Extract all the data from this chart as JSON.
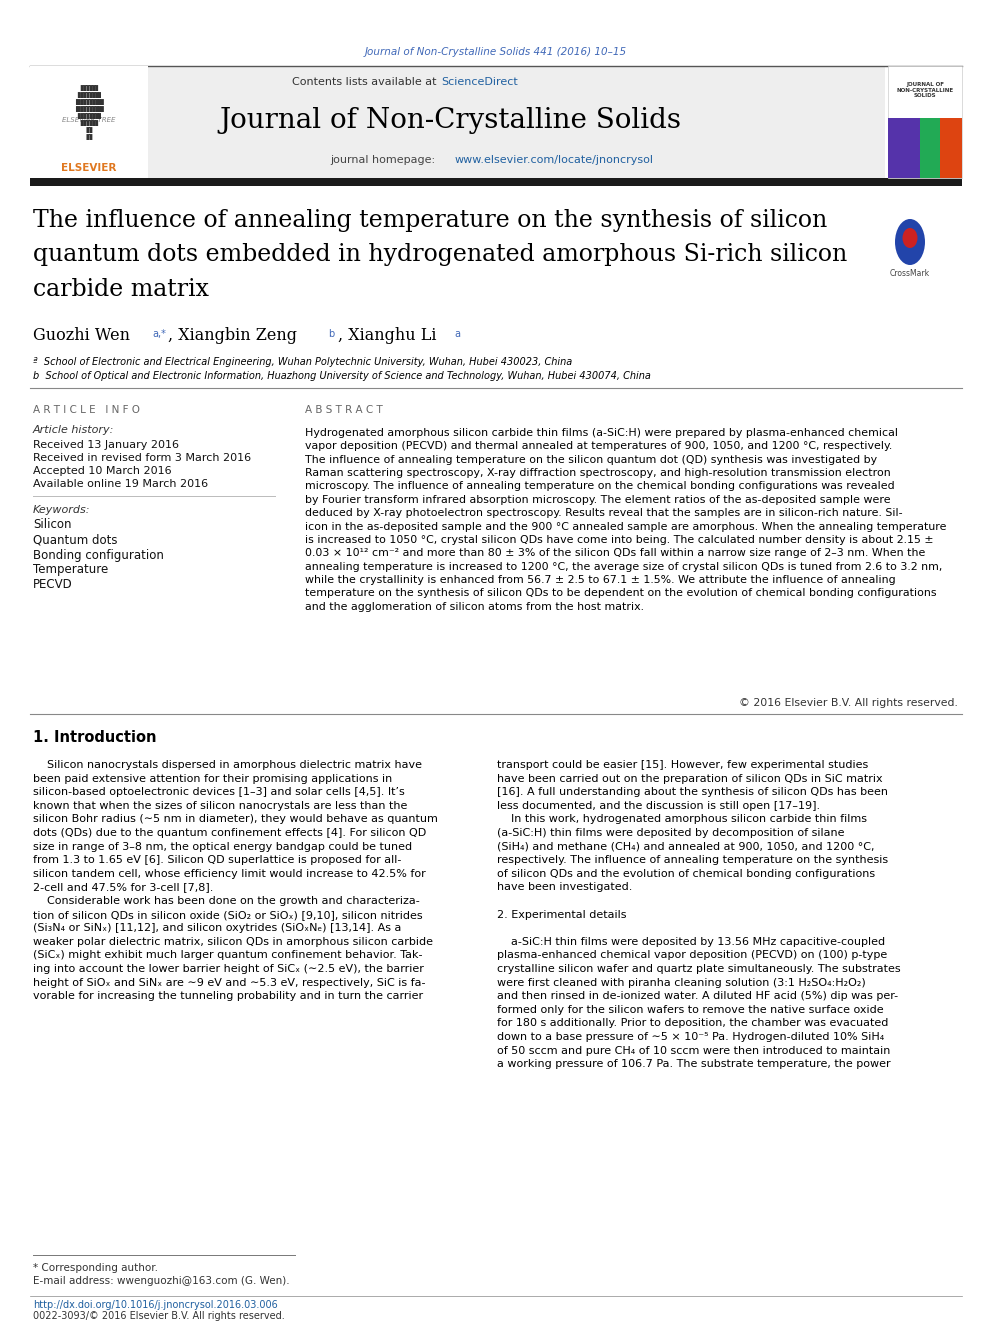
{
  "journal_ref": "Journal of Non-Crystalline Solids 441 (2016) 10–15",
  "journal_name": "Journal of Non-Crystalline Solids",
  "journal_homepage_prefix": "journal homepage: ",
  "journal_homepage_link": "www.elsevier.com/locate/jnoncrysol",
  "contents_prefix": "Contents lists available at ",
  "contents_link": "ScienceDirect",
  "title_line1": "The influence of annealing temperature on the synthesis of silicon",
  "title_line2": "quantum dots embedded in hydrogenated amorphous Si-rich silicon",
  "title_line3": "carbide matrix",
  "author_name1": "Guozhi Wen",
  "author_sup1": "a,*",
  "author_name2": ", Xiangbin Zeng",
  "author_sup2": "b",
  "author_name3": ", Xianghu Li",
  "author_sup3": "a",
  "affil_a": "ª  School of Electronic and Electrical Engineering, Wuhan Polytechnic University, Wuhan, Hubei 430023, China",
  "affil_b": "b  School of Optical and Electronic Information, Huazhong University of Science and Technology, Wuhan, Hubei 430074, China",
  "article_info_header": "ARTICLE  INFO",
  "abstract_header": "ABSTRACT",
  "article_history_label": "Article history:",
  "received": "Received 13 January 2016",
  "revised": "Received in revised form 3 March 2016",
  "accepted": "Accepted 10 March 2016",
  "available": "Available online 19 March 2016",
  "keywords_label": "Keywords:",
  "keywords": [
    "Silicon",
    "Quantum dots",
    "Bonding configuration",
    "Temperature",
    "PECVD"
  ],
  "abstract_text": "Hydrogenated amorphous silicon carbide thin films (a-SiC:H) were prepared by plasma-enhanced chemical\nvapor deposition (PECVD) and thermal annealed at temperatures of 900, 1050, and 1200 °C, respectively.\nThe influence of annealing temperature on the silicon quantum dot (QD) synthesis was investigated by\nRaman scattering spectroscopy, X-ray diffraction spectroscopy, and high-resolution transmission electron\nmicroscopy. The influence of annealing temperature on the chemical bonding configurations was revealed\nby Fourier transform infrared absorption microscopy. The element ratios of the as-deposited sample were\ndeduced by X-ray photoelectron spectroscopy. Results reveal that the samples are in silicon-rich nature. Sil-\nicon in the as-deposited sample and the 900 °C annealed sample are amorphous. When the annealing temperature\nis increased to 1050 °C, crystal silicon QDs have come into being. The calculated number density is about 2.15 ±\n0.03 × 10¹² cm⁻² and more than 80 ± 3% of the silicon QDs fall within a narrow size range of 2–3 nm. When the\nannealing temperature is increased to 1200 °C, the average size of crystal silicon QDs is tuned from 2.6 to 3.2 nm,\nwhile the crystallinity is enhanced from 56.7 ± 2.5 to 67.1 ± 1.5%. We attribute the influence of annealing\ntemperature on the synthesis of silicon QDs to be dependent on the evolution of chemical bonding configurations\nand the agglomeration of silicon atoms from the host matrix.",
  "copyright": "© 2016 Elsevier B.V. All rights reserved.",
  "section1_title": "1. Introduction",
  "intro_left": "    Silicon nanocrystals dispersed in amorphous dielectric matrix have\nbeen paid extensive attention for their promising applications in\nsilicon-based optoelectronic devices [1–3] and solar cells [4,5]. It’s\nknown that when the sizes of silicon nanocrystals are less than the\nsilicon Bohr radius (∼5 nm in diameter), they would behave as quantum\ndots (QDs) due to the quantum confinement effects [4]. For silicon QD\nsize in range of 3–8 nm, the optical energy bandgap could be tuned\nfrom 1.3 to 1.65 eV [6]. Silicon QD superlattice is proposed for all-\nsilicon tandem cell, whose efficiency limit would increase to 42.5% for\n2-cell and 47.5% for 3-cell [7,8].\n    Considerable work has been done on the growth and characteriza-\ntion of silicon QDs in silicon oxide (SiO₂ or SiOₓ) [9,10], silicon nitrides\n(Si₃N₄ or SiNₓ) [11,12], and silicon oxytrides (SiOₓNₑ) [13,14]. As a\nweaker polar dielectric matrix, silicon QDs in amorphous silicon carbide\n(SiCₓ) might exhibit much larger quantum confinement behavior. Tak-\ning into account the lower barrier height of SiCₓ (∼2.5 eV), the barrier\nheight of SiOₓ and SiNₓ are ∼9 eV and ∼5.3 eV, respectively, SiC is fa-\nvorable for increasing the tunneling probability and in turn the carrier",
  "intro_right": "transport could be easier [15]. However, few experimental studies\nhave been carried out on the preparation of silicon QDs in SiC matrix\n[16]. A full understanding about the synthesis of silicon QDs has been\nless documented, and the discussion is still open [17–19].\n    In this work, hydrogenated amorphous silicon carbide thin films\n(a-SiC:H) thin films were deposited by decomposition of silane\n(SiH₄) and methane (CH₄) and annealed at 900, 1050, and 1200 °C,\nrespectively. The influence of annealing temperature on the synthesis\nof silicon QDs and the evolution of chemical bonding configurations\nhave been investigated.\n\n2. Experimental details\n\n    a-SiC:H thin films were deposited by 13.56 MHz capacitive-coupled\nplasma-enhanced chemical vapor deposition (PECVD) on (100) p-type\ncrystalline silicon wafer and quartz plate simultaneously. The substrates\nwere first cleaned with piranha cleaning solution (3:1 H₂SO₄:H₂O₂)\nand then rinsed in de-ionized water. A diluted HF acid (5%) dip was per-\nformed only for the silicon wafers to remove the native surface oxide\nfor 180 s additionally. Prior to deposition, the chamber was evacuated\ndown to a base pressure of ∼5 × 10⁻⁵ Pa. Hydrogen-diluted 10% SiH₄\nof 50 sccm and pure CH₄ of 10 sccm were then introduced to maintain\na working pressure of 106.7 Pa. The substrate temperature, the power",
  "footnote_star": "* Corresponding author.",
  "footnote_email": "E-mail address: wwenguozhi@163.com (G. Wen).",
  "doi": "http://dx.doi.org/10.1016/j.jnoncrysol.2016.03.006",
  "issn": "0022-3093/© 2016 Elsevier B.V. All rights reserved.",
  "bg_color": "#ffffff",
  "header_bg": "#eeeeee",
  "blue_color": "#4169b8",
  "link_color": "#2060a0",
  "dark_bar": "#1a1a1a",
  "gray_text": "#666666",
  "text_color": "#000000",
  "elsevier_orange": "#e07820"
}
